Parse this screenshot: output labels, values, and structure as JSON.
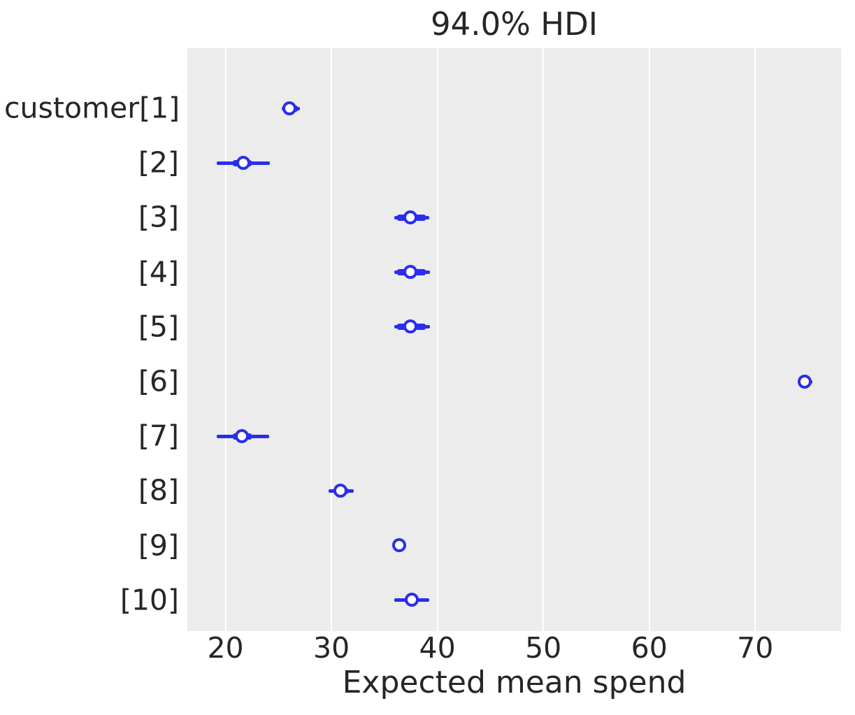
{
  "title": "94.0% HDI",
  "xlabel": "Expected mean spend",
  "colors": {
    "marker_blue": "#2a2eec",
    "plot_background": "#ececec",
    "gridline": "#ffffff",
    "text": "#262626",
    "figure_background": "#ffffff"
  },
  "chart_data": {
    "type": "scatter",
    "subtype": "forest-plot-hdi",
    "title": "94.0% HDI",
    "xlabel": "Expected mean spend",
    "ylabel": "",
    "xticks": [
      20,
      30,
      40,
      50,
      60,
      70
    ],
    "xlim": [
      16.4,
      78.1
    ],
    "grid": "vertical-only",
    "legend": "none",
    "rows": [
      {
        "label": "customer[1]",
        "point": 26.1,
        "hdi": [
          25.3,
          27.0
        ],
        "thick": [
          25.5,
          26.8
        ]
      },
      {
        "label": "[2]",
        "point": 21.7,
        "hdi": [
          19.2,
          24.2
        ],
        "thick": [
          20.7,
          22.5
        ]
      },
      {
        "label": "[3]",
        "point": 37.5,
        "hdi": [
          35.9,
          39.2
        ],
        "thick": [
          36.2,
          38.9
        ]
      },
      {
        "label": "[4]",
        "point": 37.5,
        "hdi": [
          35.9,
          39.3
        ],
        "thick": [
          36.2,
          38.9
        ]
      },
      {
        "label": "[5]",
        "point": 37.5,
        "hdi": [
          35.9,
          39.3
        ],
        "thick": [
          36.2,
          38.9
        ]
      },
      {
        "label": "[6]",
        "point": 74.7,
        "hdi": [
          74.1,
          75.4
        ],
        "thick": [
          74.3,
          75.2
        ]
      },
      {
        "label": "[7]",
        "point": 21.6,
        "hdi": [
          19.2,
          24.1
        ],
        "thick": [
          20.7,
          22.5
        ]
      },
      {
        "label": "[8]",
        "point": 30.9,
        "hdi": [
          29.7,
          32.1
        ],
        "thick": [
          30.2,
          31.6
        ]
      },
      {
        "label": "[9]",
        "point": 36.4,
        "hdi": [
          36.2,
          36.6
        ],
        "thick": [
          36.3,
          36.5
        ]
      },
      {
        "label": "[10]",
        "point": 37.6,
        "hdi": [
          35.9,
          39.2
        ],
        "thick": [
          36.9,
          38.2
        ]
      }
    ]
  }
}
